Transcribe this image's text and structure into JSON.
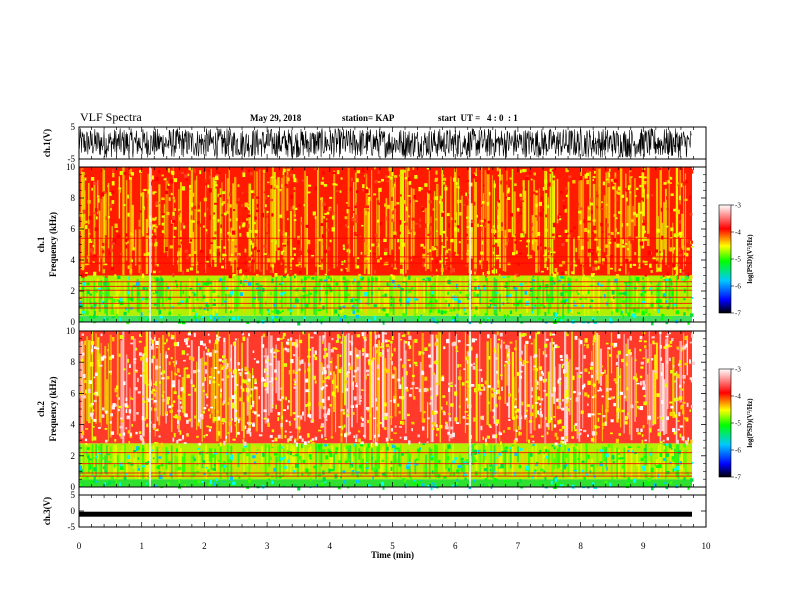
{
  "header": {
    "title": "VLF Spectra",
    "date": "May 29, 2018",
    "station": "station= KAP",
    "start": "start  UT =   4 : 0  : 1"
  },
  "colors": {
    "spec_low": "#0000ff",
    "spec_mid": "#00ff00",
    "spec_high": "#ffff00",
    "spec_peak": "#ff0000",
    "spec_sat": "#ffffff"
  },
  "chart_data": [
    {
      "type": "line",
      "name": "ch1-waveform",
      "ylabel": "ch.1(V)",
      "ylim": [
        -5,
        5
      ],
      "y_ticks": [
        "5",
        "-5"
      ],
      "x_range_min": [
        0,
        9.8
      ],
      "note_values": "dense noise-like waveform spanning approx -4.5 to 4.5 V"
    },
    {
      "type": "heatmap",
      "name": "ch1-spectrogram",
      "ylabel": "ch.1\nFrequency (kHz)",
      "ylim": [
        0,
        10
      ],
      "y_ticks": [
        "0",
        "2",
        "4",
        "6",
        "8",
        "10"
      ],
      "x_range_min": [
        0,
        9.8
      ],
      "bands": [
        {
          "from_khz": 0.0,
          "to_khz": 0.4,
          "level": "green/cyan"
        },
        {
          "from_khz": 0.4,
          "to_khz": 3.0,
          "level": "green/yellow"
        },
        {
          "from_khz": 3.0,
          "to_khz": 10.0,
          "level": "red/yellow"
        }
      ],
      "colorbar": {
        "label": "log(PSD)(V²/Hz)",
        "range": [
          -7,
          -3
        ],
        "ticks": [
          "-3",
          "-4",
          "-5",
          "-6",
          "-7"
        ]
      }
    },
    {
      "type": "heatmap",
      "name": "ch2-spectrogram",
      "ylabel": "ch.2\nFrequency (kHz)",
      "ylim": [
        0,
        10
      ],
      "y_ticks": [
        "0",
        "2",
        "4",
        "6",
        "8",
        "10"
      ],
      "x_range_min": [
        0,
        9.8
      ],
      "bands": [
        {
          "from_khz": 0.0,
          "to_khz": 0.5,
          "level": "green"
        },
        {
          "from_khz": 0.5,
          "to_khz": 2.8,
          "level": "green/yellow"
        },
        {
          "from_khz": 2.8,
          "to_khz": 10.0,
          "level": "red/white"
        }
      ],
      "colorbar": {
        "label": "log(PSD)(V²/Hz)",
        "range": [
          -7,
          -3
        ],
        "ticks": [
          "-3",
          "-4",
          "-5",
          "-6",
          "-7"
        ]
      }
    },
    {
      "type": "line",
      "name": "ch3-waveform",
      "ylabel": "ch.3(V)",
      "ylim": [
        -5,
        5
      ],
      "y_ticks": [
        "5",
        "0",
        "-5"
      ],
      "values_const": -1.0,
      "x_range_min": [
        0,
        9.8
      ]
    }
  ],
  "xaxis": {
    "label": "Time  (min)",
    "ticks": [
      "0",
      "1",
      "2",
      "3",
      "4",
      "5",
      "6",
      "7",
      "8",
      "9",
      "10"
    ],
    "range": [
      0,
      10
    ]
  }
}
